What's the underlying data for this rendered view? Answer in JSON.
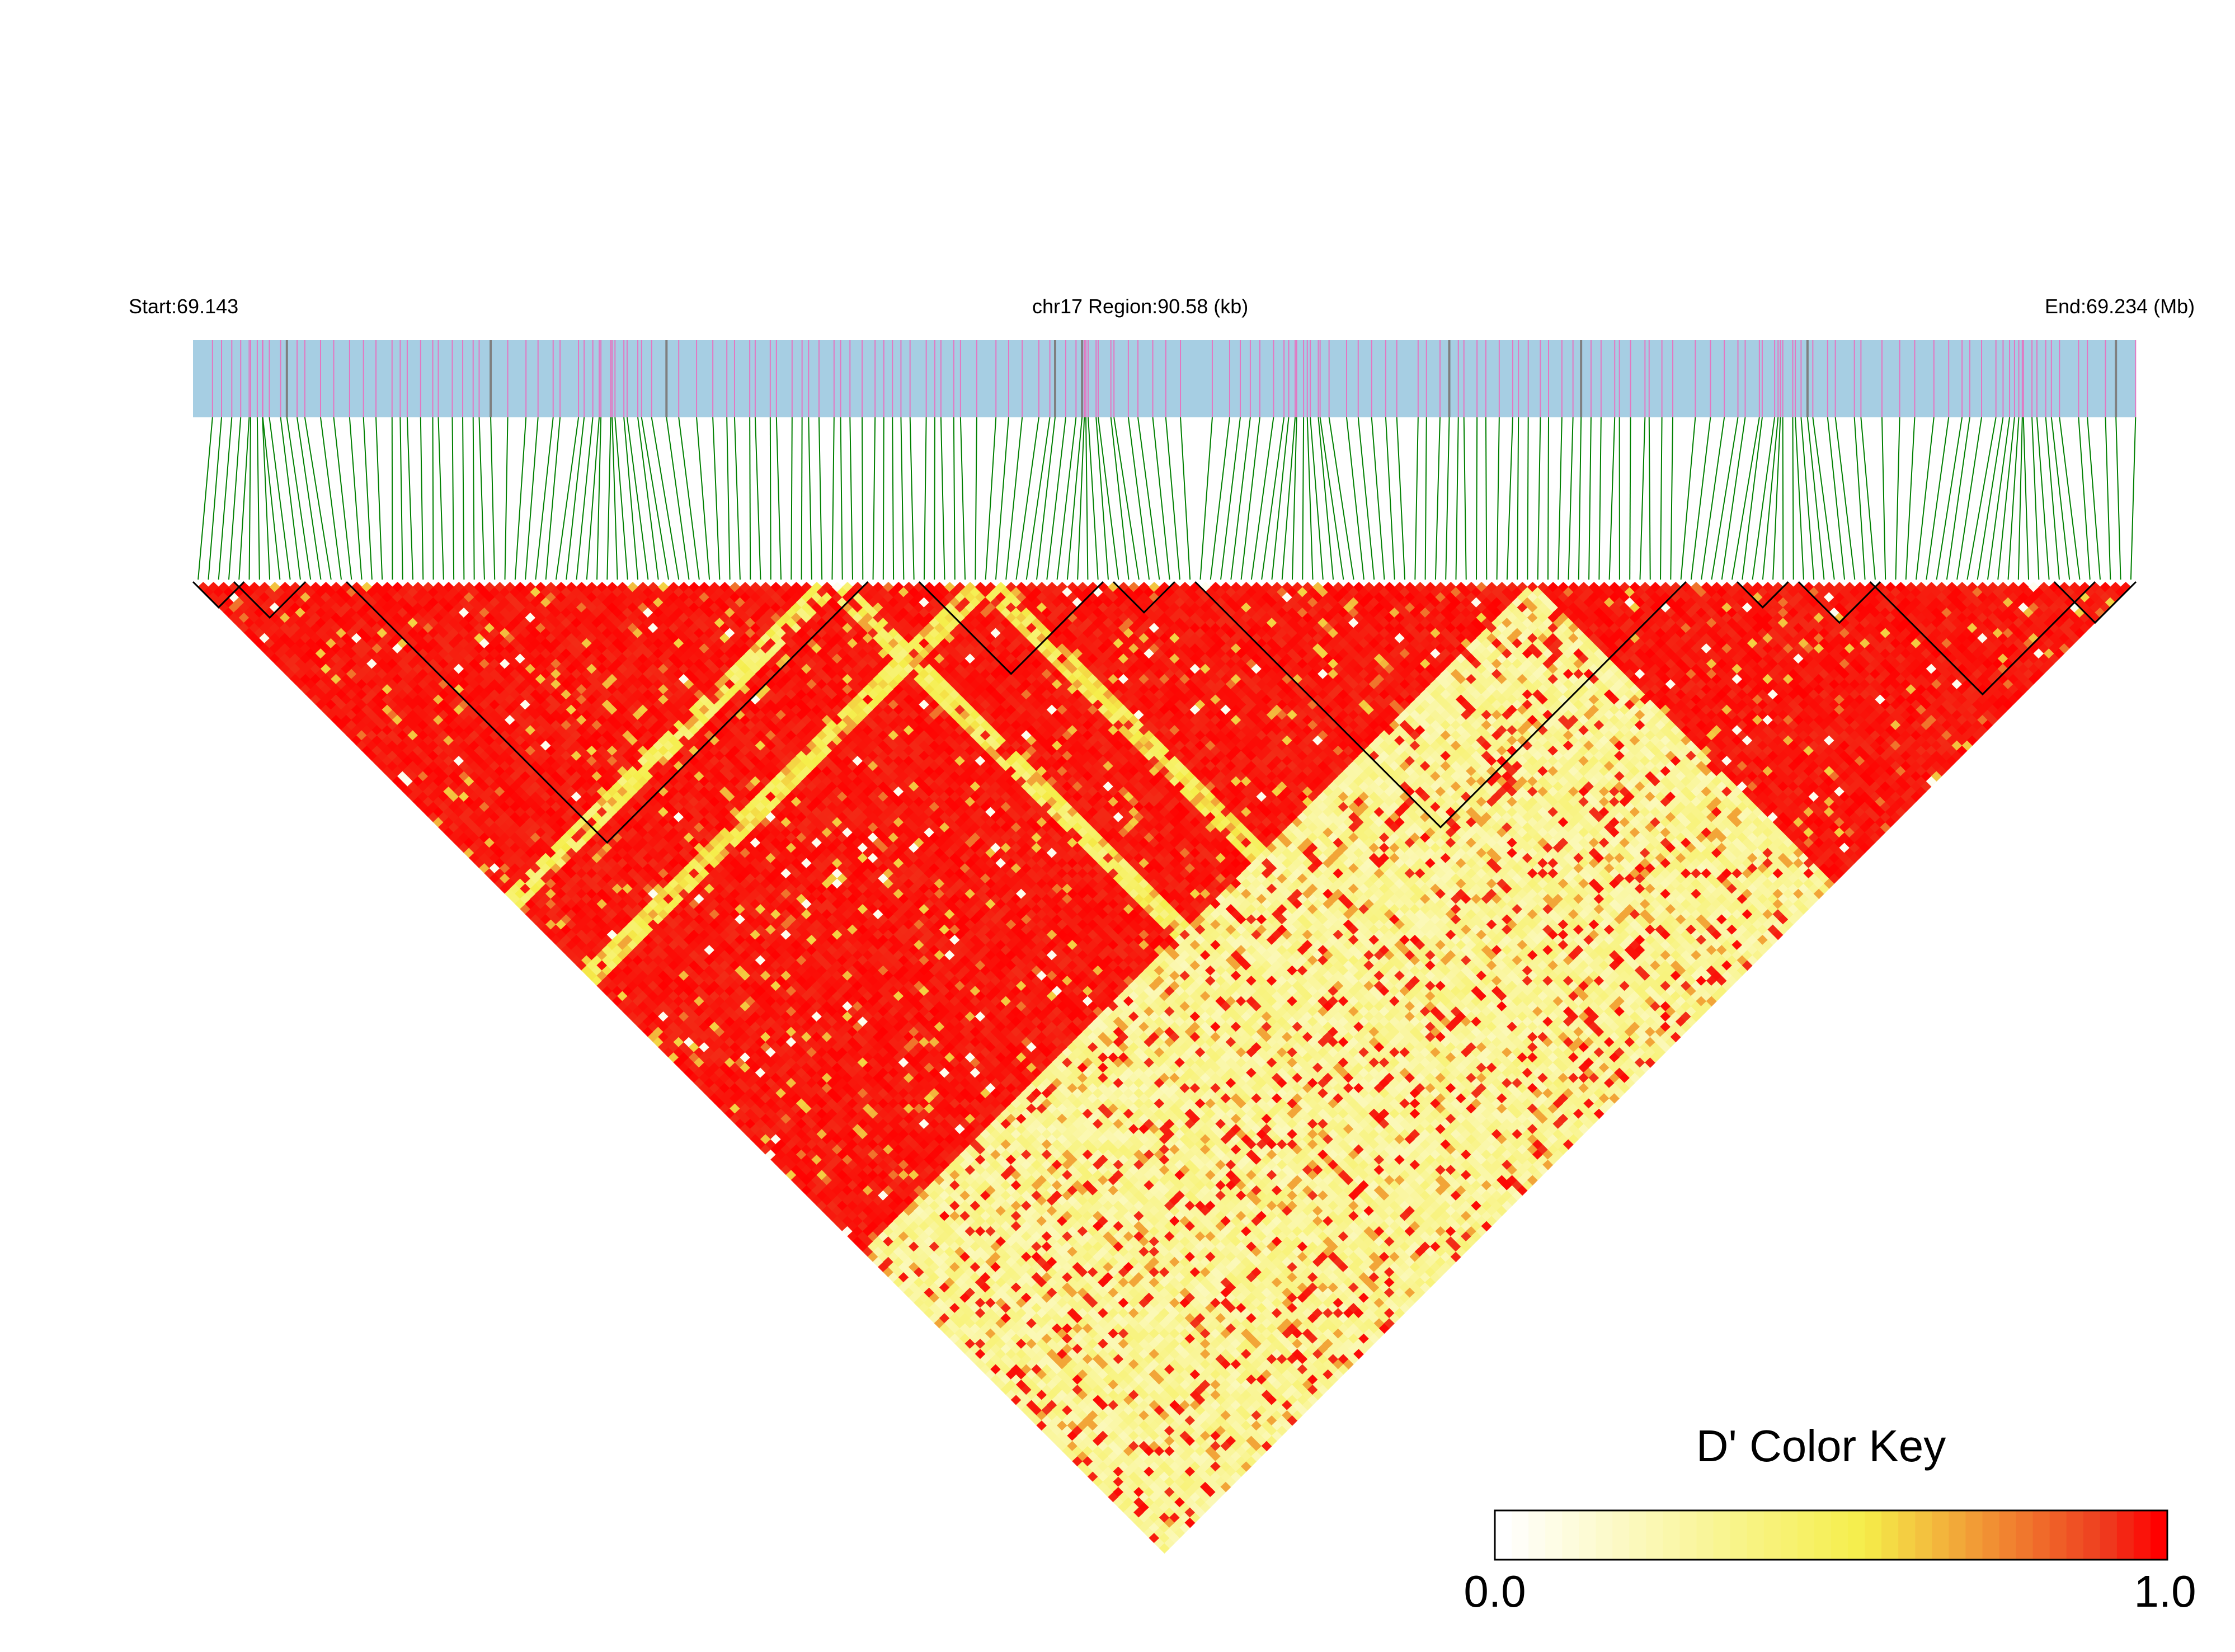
{
  "chart_data": {
    "type": "heatmap",
    "subtype": "linkage-disequilibrium-triangle",
    "header": {
      "start_label": "Start:69.143",
      "region_label": "chr17 Region:90.58 (kb)",
      "end_label": "End:69.234 (Mb)"
    },
    "region": {
      "chromosome": "chr17",
      "start_mb": 69.143,
      "end_mb": 69.234,
      "length_kb": 90.58
    },
    "snp_count": 190,
    "metric": "D'",
    "value_range": [
      0.0,
      1.0
    ],
    "background_level": 0.97,
    "low_ld_marker_blocks": [
      {
        "from": 131,
        "to": 189,
        "level": 0.28
      },
      {
        "from": 61,
        "to": 63,
        "level": 0.45
      },
      {
        "from": 76,
        "to": 78,
        "level": 0.5
      }
    ],
    "haplotype_blocks": [
      {
        "from": 0,
        "to": 4
      },
      {
        "from": 4,
        "to": 10
      },
      {
        "from": 15,
        "to": 65
      },
      {
        "from": 71,
        "to": 88
      },
      {
        "from": 90,
        "to": 95
      },
      {
        "from": 98,
        "to": 145
      },
      {
        "from": 151,
        "to": 155
      },
      {
        "from": 157,
        "to": 164
      },
      {
        "from": 164,
        "to": 185
      },
      {
        "from": 182,
        "to": 189
      }
    ],
    "gene_track": {
      "background_color": "#a6cee3",
      "variant_line_color": "#e377c2",
      "dense_line_color": "#7f7f7f",
      "connector_color": "#008000"
    },
    "color_key": {
      "title": "D' Color Key",
      "min_label": "0.0",
      "max_label": "1.0",
      "colors": [
        "#ffffff",
        "#f5ee4a",
        "#ee3a1e",
        "#ff0000"
      ]
    }
  }
}
